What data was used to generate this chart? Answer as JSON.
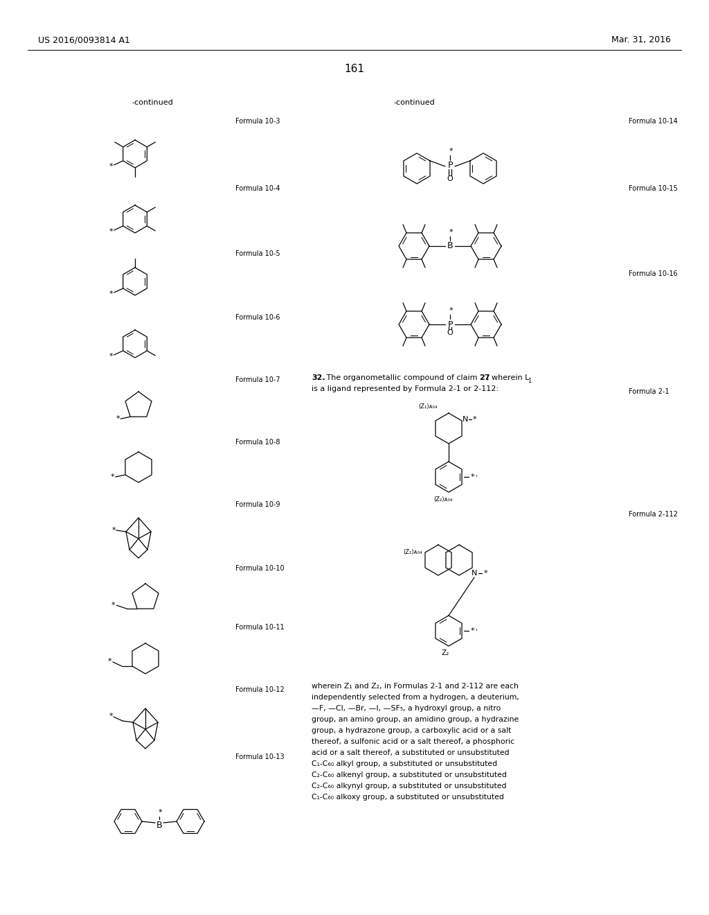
{
  "page_bg": "#ffffff",
  "header_left": "US 2016/0093814 A1",
  "header_right": "Mar. 31, 2016",
  "page_number": "161",
  "continued_left": "-continued",
  "continued_right": "-continued",
  "bottom_text_lines": [
    "wherein Z₁ and Z₂, in Formulas 2-1 and 2-112 are each",
    "independently selected from a hydrogen, a deuterium,",
    "—F, —Cl, —Br, —I, —SF₅, a hydroxyl group, a nitro",
    "group, an amino group, an amidino group, a hydrazine",
    "group, a hydrazone group, a carboxylic acid or a salt",
    "thereof, a sulfonic acid or a salt thereof, a phosphoric",
    "acid or a salt thereof, a substituted or unsubstituted",
    "C₁-C₆₀ alkyl group, a substituted or unsubstituted",
    "C₂-C₆₀ alkenyl group, a substituted or unsubstituted",
    "C₂-C₆₀ alkynyl group, a substituted or unsubstituted",
    "C₁-C₆₀ alkoxy group, a substituted or unsubstituted"
  ]
}
